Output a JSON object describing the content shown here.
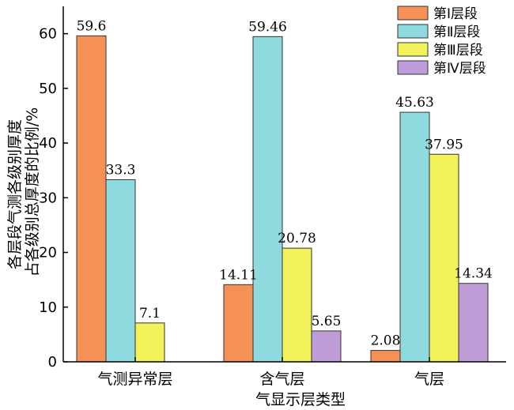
{
  "chart_data": {
    "type": "bar",
    "categories": [
      "气测异常层",
      "含气层",
      "气层"
    ],
    "series": [
      {
        "name": "第Ⅰ层段",
        "color": "#F59155",
        "values": [
          59.6,
          14.11,
          2.08
        ],
        "labels": [
          "59.6",
          "14.11",
          "2.08"
        ]
      },
      {
        "name": "第Ⅱ层段",
        "color": "#8FDADF",
        "values": [
          33.3,
          59.46,
          45.63
        ],
        "labels": [
          "33.3",
          "59.46",
          "45.63"
        ]
      },
      {
        "name": "第Ⅲ层段",
        "color": "#F2F25A",
        "values": [
          7.1,
          20.78,
          37.95
        ],
        "labels": [
          "7.1",
          "20.78",
          "37.95"
        ]
      },
      {
        "name": "第Ⅳ层段",
        "color": "#BE9CD8",
        "values": [
          null,
          5.65,
          14.34
        ],
        "labels": [
          "",
          "5.65",
          "14.34"
        ]
      }
    ],
    "xlabel": "气显示层类型",
    "ylabel": [
      "各层段气测各级别厚度",
      "占各级别总厚度的比例/%"
    ],
    "ylim": [
      0,
      65
    ],
    "yticks": [
      0,
      10,
      20,
      30,
      40,
      50,
      60
    ],
    "legend_position": "top-right",
    "grid": false
  }
}
